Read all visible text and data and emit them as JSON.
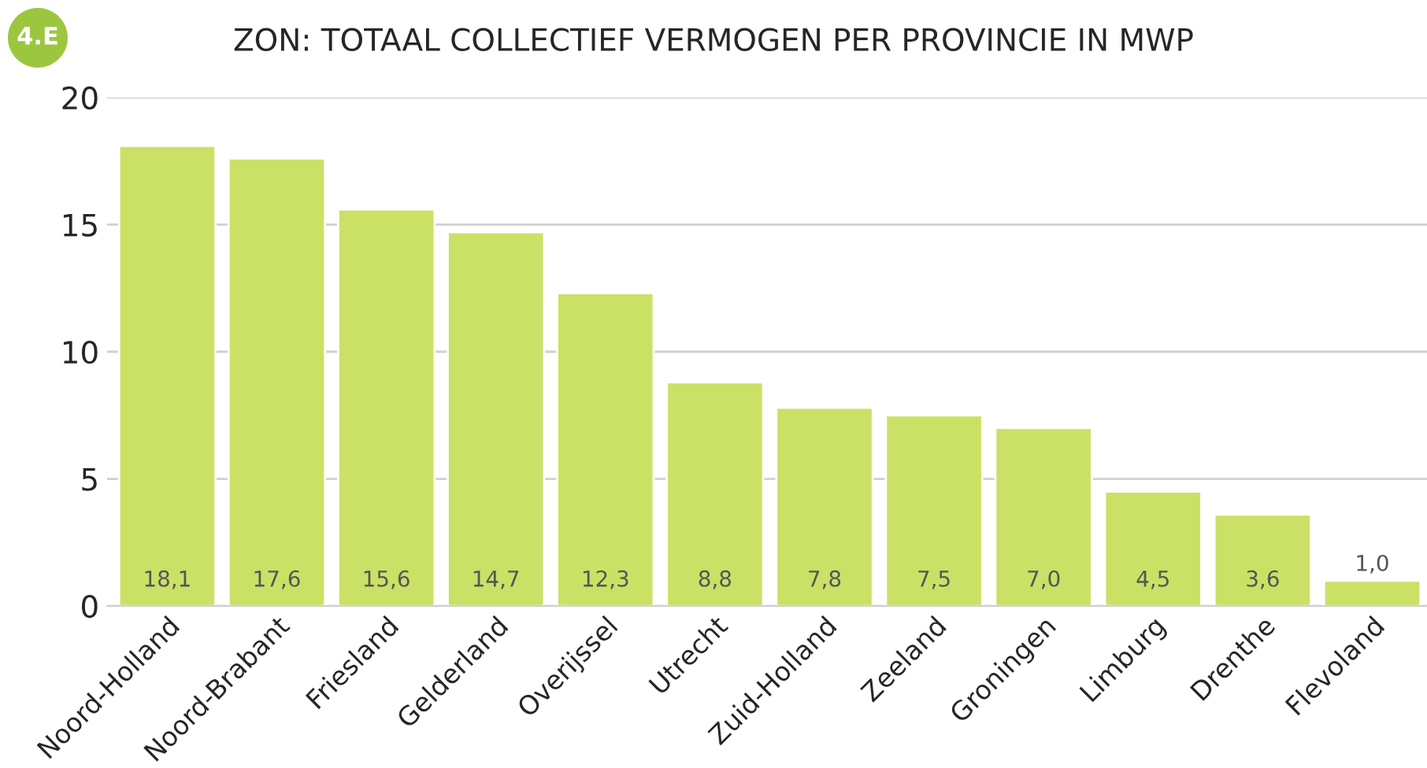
{
  "chart_data": {
    "type": "bar",
    "title": "ZON: TOTAAL COLLECTIEF VERMOGEN PER PROVINCIE IN MWP",
    "annotations": [
      "4.E"
    ],
    "categories": [
      "Noord-Holland",
      "Noord-Brabant",
      "Friesland",
      "Gelderland",
      "Overijssel",
      "Utrecht",
      "Zuid-Holland",
      "Zeeland",
      "Groningen",
      "Limburg",
      "Drenthe",
      "Flevoland"
    ],
    "values": [
      18.1,
      17.6,
      15.6,
      14.7,
      12.3,
      8.8,
      7.8,
      7.5,
      7.0,
      4.5,
      3.6,
      1.0
    ],
    "value_labels": [
      "18,1",
      "17,6",
      "15,6",
      "14,7",
      "12,3",
      "8,8",
      "7,8",
      "7,5",
      "7,0",
      "4,5",
      "3,6",
      "1,0"
    ],
    "color": "#cae166",
    "ylim": [
      0,
      20
    ],
    "yticks": [
      0,
      5,
      10,
      15,
      20
    ],
    "grid": "y",
    "legend": false
  }
}
